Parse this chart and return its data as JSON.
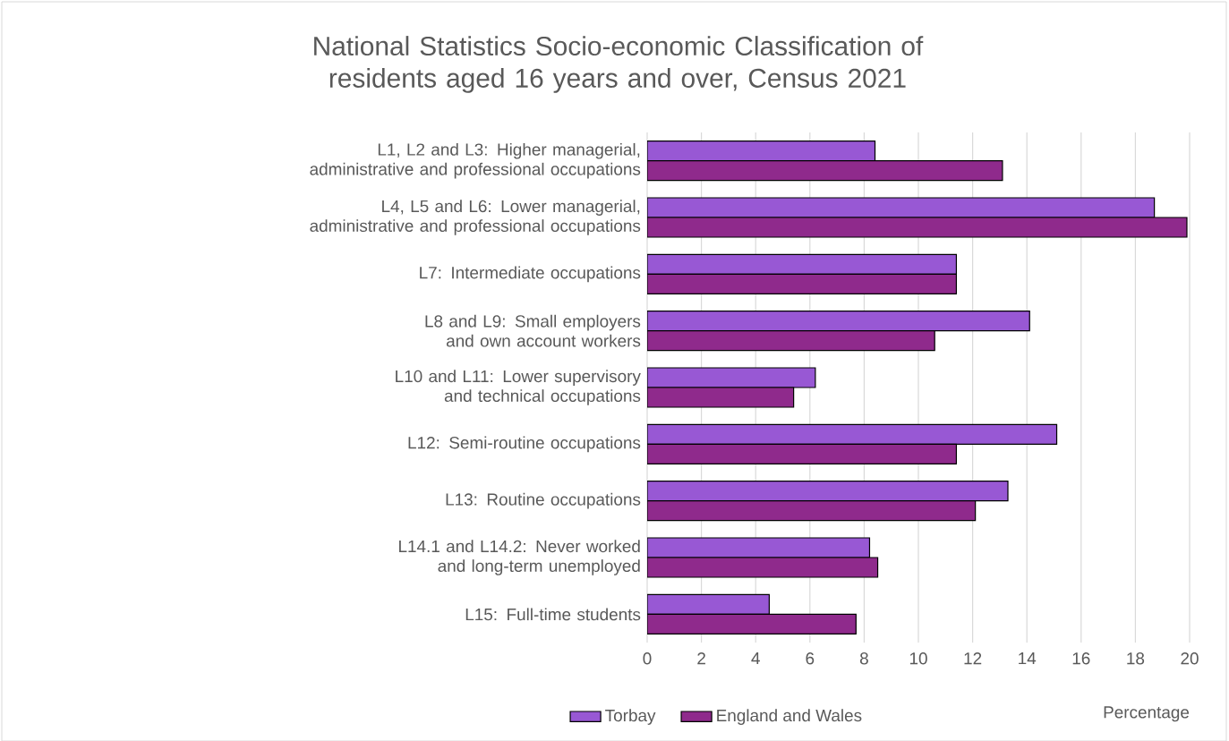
{
  "chart_data": {
    "type": "bar",
    "orientation": "horizontal",
    "title": "National Statistics Socio-economic Classification of residents aged 16 years and over, Census 2021",
    "xlabel": "Percentage",
    "categories": [
      "L1, L2 and L3: Higher managerial, administrative and professional occupations",
      "L4, L5 and L6: Lower managerial, administrative and professional occupations",
      "L7: Intermediate occupations",
      "L8 and L9: Small employers and own account workers",
      "L10 and L11: Lower supervisory and technical occupations",
      "L12: Semi-routine occupations",
      "L13: Routine occupations",
      "L14.1 and L14.2: Never worked and long-term unemployed",
      "L15: Full-time students"
    ],
    "series": [
      {
        "name": "Torbay",
        "color": "#9858d4",
        "values": [
          8.4,
          18.7,
          11.4,
          14.1,
          6.2,
          15.1,
          13.3,
          8.2,
          4.5
        ]
      },
      {
        "name": "England and Wales",
        "color": "#8f2a8c",
        "values": [
          13.1,
          19.9,
          11.4,
          10.6,
          5.4,
          11.4,
          12.1,
          8.5,
          7.7
        ]
      }
    ],
    "xlim": [
      0,
      20
    ],
    "xticks": [
      0,
      2,
      4,
      6,
      8,
      10,
      12,
      14,
      16,
      18,
      20
    ],
    "grid": "x",
    "legend": "bottom"
  }
}
